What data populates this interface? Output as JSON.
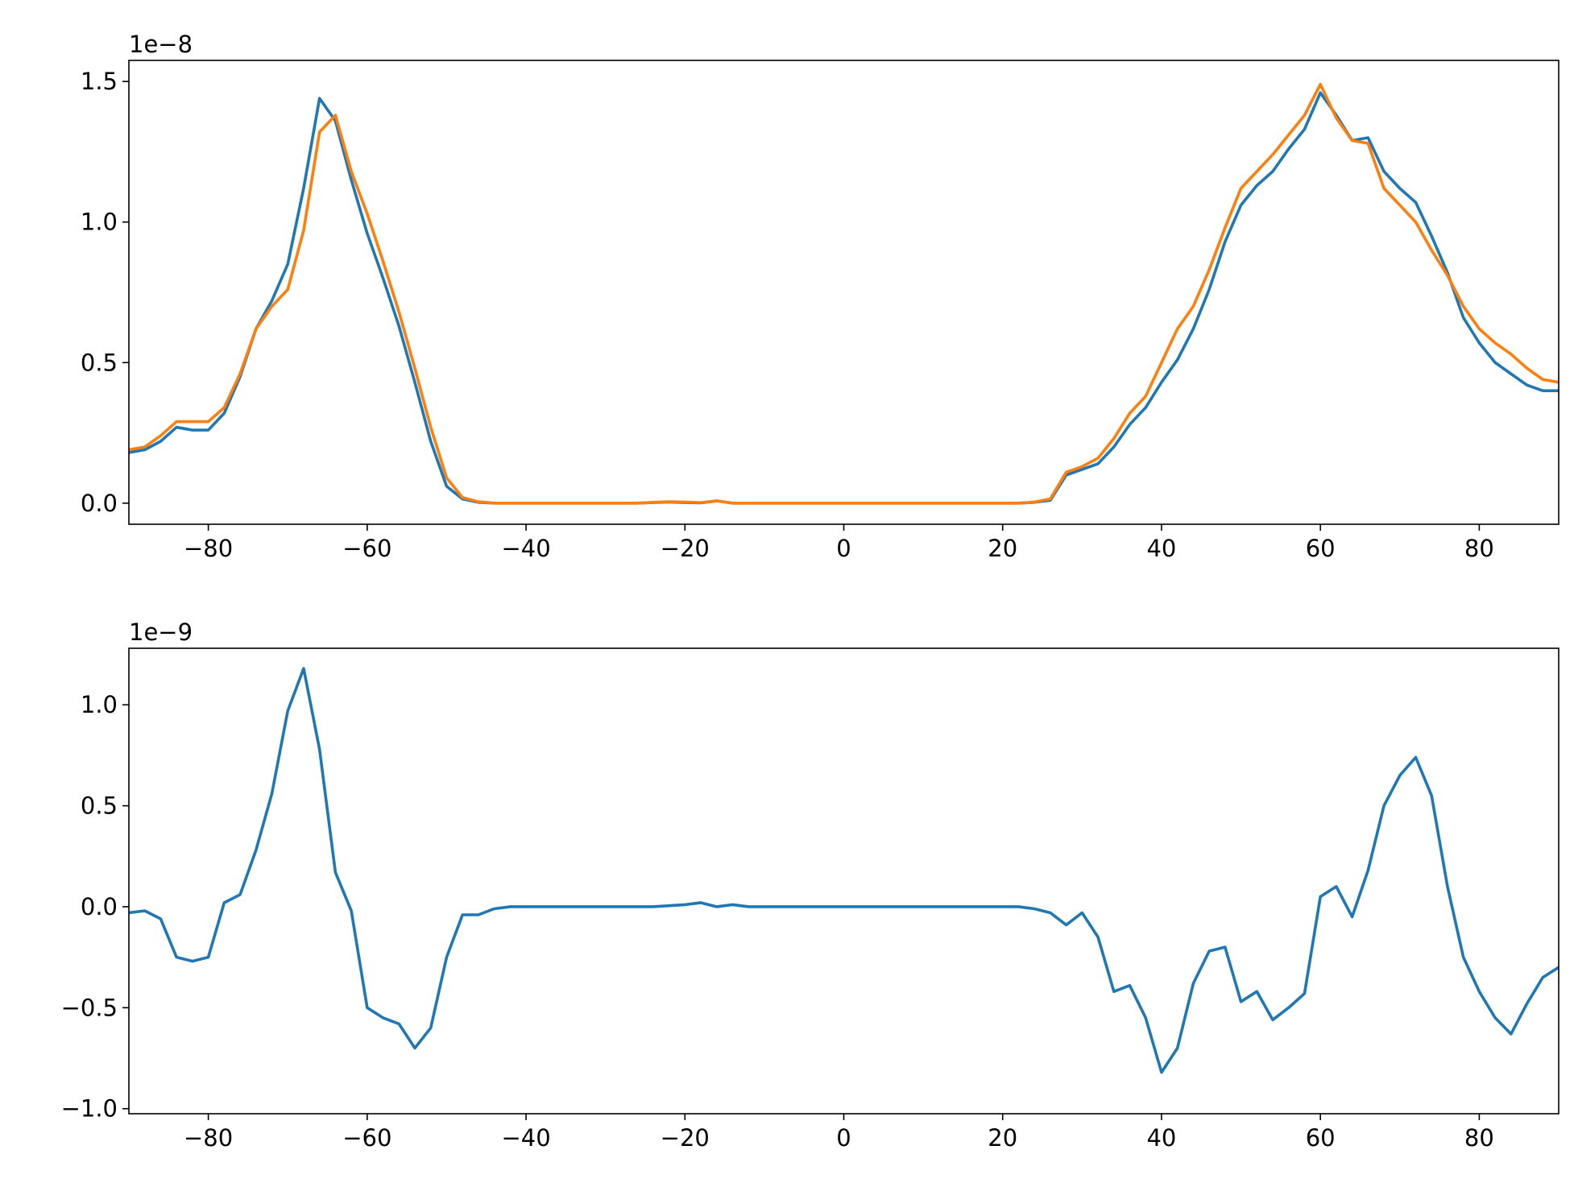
{
  "chart_data": [
    {
      "type": "line",
      "offset_label": "1e−8",
      "x": [
        -90,
        -88,
        -86,
        -84,
        -82,
        -80,
        -78,
        -76,
        -74,
        -72,
        -70,
        -68,
        -66,
        -64,
        -62,
        -60,
        -58,
        -56,
        -54,
        -52,
        -50,
        -48,
        -46,
        -44,
        -42,
        -40,
        -38,
        -36,
        -34,
        -32,
        -30,
        -28,
        -26,
        -24,
        -22,
        -20,
        -18,
        -16,
        -14,
        -12,
        -10,
        -8,
        -6,
        -4,
        -2,
        0,
        2,
        4,
        6,
        8,
        10,
        12,
        14,
        16,
        18,
        20,
        22,
        24,
        26,
        28,
        30,
        32,
        34,
        36,
        38,
        40,
        42,
        44,
        46,
        48,
        50,
        52,
        54,
        56,
        58,
        60,
        62,
        64,
        66,
        68,
        70,
        72,
        74,
        76,
        78,
        80,
        82,
        84,
        86,
        88,
        90
      ],
      "series": [
        {
          "color": "#1f77b4",
          "values": [
            0.18,
            0.19,
            0.22,
            0.27,
            0.26,
            0.26,
            0.32,
            0.45,
            0.62,
            0.72,
            0.85,
            1.12,
            1.44,
            1.36,
            1.15,
            0.96,
            0.8,
            0.63,
            0.43,
            0.22,
            0.06,
            0.015,
            0.003,
            0,
            0,
            0,
            0,
            0,
            0,
            0,
            0,
            0,
            0,
            0.002,
            0.004,
            0.002,
            0.001,
            0.008,
            0,
            0,
            0,
            0,
            0,
            0,
            0,
            0,
            0,
            0,
            0,
            0,
            0,
            0,
            0,
            0,
            0,
            0,
            0,
            0.003,
            0.01,
            0.1,
            0.12,
            0.14,
            0.2,
            0.28,
            0.34,
            0.43,
            0.51,
            0.62,
            0.76,
            0.93,
            1.06,
            1.13,
            1.18,
            1.26,
            1.33,
            1.46,
            1.38,
            1.29,
            1.3,
            1.18,
            1.12,
            1.07,
            0.95,
            0.82,
            0.66,
            0.57,
            0.5,
            0.46,
            0.42,
            0.4,
            0.4
          ]
        },
        {
          "color": "#ff7f0e",
          "values": [
            0.19,
            0.2,
            0.24,
            0.29,
            0.29,
            0.29,
            0.34,
            0.46,
            0.62,
            0.7,
            0.76,
            0.97,
            1.32,
            1.38,
            1.18,
            1.03,
            0.86,
            0.68,
            0.48,
            0.27,
            0.09,
            0.02,
            0.005,
            0,
            0,
            0,
            0,
            0,
            0,
            0,
            0,
            0,
            0,
            0.003,
            0.005,
            0.004,
            0.002,
            0.008,
            0,
            0,
            0,
            0,
            0,
            0,
            0,
            0,
            0,
            0,
            0,
            0,
            0,
            0,
            0,
            0,
            0,
            0,
            0,
            0.004,
            0.015,
            0.11,
            0.13,
            0.16,
            0.23,
            0.32,
            0.38,
            0.5,
            0.62,
            0.7,
            0.83,
            0.98,
            1.12,
            1.18,
            1.24,
            1.31,
            1.38,
            1.49,
            1.37,
            1.29,
            1.28,
            1.12,
            1.06,
            1.0,
            0.9,
            0.81,
            0.7,
            0.62,
            0.57,
            0.53,
            0.48,
            0.44,
            0.43
          ]
        }
      ],
      "xlim": [
        -90,
        90
      ],
      "xticks": [
        {
          "value": -80,
          "label": "−80"
        },
        {
          "value": -60,
          "label": "−60"
        },
        {
          "value": -40,
          "label": "−40"
        },
        {
          "value": -20,
          "label": "−20"
        },
        0,
        20,
        40,
        60,
        80
      ],
      "ylim": [
        -0.075,
        1.575
      ],
      "yticks": [
        {
          "value": 0,
          "label": "0.0"
        },
        0.5,
        {
          "value": 1,
          "label": "1.0"
        },
        1.5
      ]
    },
    {
      "type": "line",
      "offset_label": "1e−9",
      "x": [
        -90,
        -88,
        -86,
        -84,
        -82,
        -80,
        -78,
        -76,
        -74,
        -72,
        -70,
        -68,
        -66,
        -64,
        -62,
        -60,
        -58,
        -56,
        -54,
        -52,
        -50,
        -48,
        -46,
        -44,
        -42,
        -40,
        -38,
        -36,
        -34,
        -32,
        -30,
        -28,
        -26,
        -24,
        -22,
        -20,
        -18,
        -16,
        -14,
        -12,
        -10,
        -8,
        -6,
        -4,
        -2,
        0,
        2,
        4,
        6,
        8,
        10,
        12,
        14,
        16,
        18,
        20,
        22,
        24,
        26,
        28,
        30,
        32,
        34,
        36,
        38,
        40,
        42,
        44,
        46,
        48,
        50,
        52,
        54,
        56,
        58,
        60,
        62,
        64,
        66,
        68,
        70,
        72,
        74,
        76,
        78,
        80,
        82,
        84,
        86,
        88,
        90
      ],
      "series": [
        {
          "color": "#1f77b4",
          "values": [
            -0.03,
            -0.02,
            -0.06,
            -0.25,
            -0.27,
            -0.25,
            0.02,
            0.06,
            0.28,
            0.56,
            0.97,
            1.18,
            0.78,
            0.17,
            -0.02,
            -0.5,
            -0.55,
            -0.58,
            -0.7,
            -0.6,
            -0.25,
            -0.04,
            -0.04,
            -0.01,
            0,
            0,
            0,
            0,
            0,
            0,
            0,
            0,
            0,
            0,
            0.005,
            0.01,
            0.02,
            0,
            0.01,
            0,
            0,
            0,
            0,
            0,
            0,
            0,
            0,
            0,
            0,
            0,
            0,
            0,
            0,
            0,
            0,
            0,
            0,
            -0.01,
            -0.03,
            -0.09,
            -0.03,
            -0.15,
            -0.42,
            -0.39,
            -0.55,
            -0.82,
            -0.7,
            -0.38,
            -0.22,
            -0.2,
            -0.47,
            -0.42,
            -0.56,
            -0.5,
            -0.43,
            0.05,
            0.1,
            -0.05,
            0.18,
            0.5,
            0.65,
            0.74,
            0.55,
            0.1,
            -0.25,
            -0.42,
            -0.55,
            -0.63,
            -0.48,
            -0.35,
            -0.3
          ]
        }
      ],
      "xlim": [
        -90,
        90
      ],
      "xticks": [
        {
          "value": -80,
          "label": "−80"
        },
        {
          "value": -60,
          "label": "−60"
        },
        {
          "value": -40,
          "label": "−40"
        },
        {
          "value": -20,
          "label": "−20"
        },
        0,
        20,
        40,
        60,
        80
      ],
      "ylim": [
        -1.025,
        1.28
      ],
      "yticks": [
        {
          "value": -1,
          "label": "−1.0"
        },
        {
          "value": -0.5,
          "label": "−0.5"
        },
        {
          "value": 0,
          "label": "0.0"
        },
        0.5,
        {
          "value": 1,
          "label": "1.0"
        }
      ]
    }
  ]
}
